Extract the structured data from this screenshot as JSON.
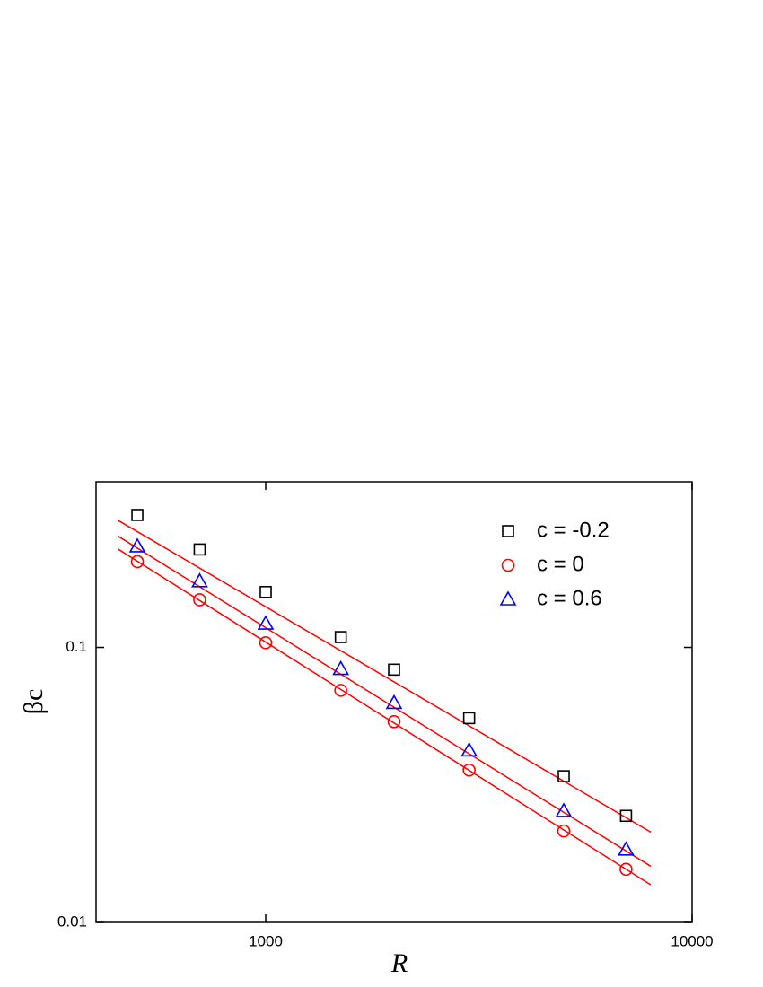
{
  "chart_data": {
    "type": "scatter",
    "x_label": "R",
    "y_label": "βc",
    "log_x": true,
    "log_y": true,
    "legend": "top-right",
    "xlim": [
      400,
      10000
    ],
    "ylim": [
      0.01,
      0.4
    ],
    "xticks": [
      1000,
      10000
    ],
    "yticks": [
      0.01,
      0.1
    ],
    "series": [
      {
        "name": "c = -0.2",
        "marker": "square",
        "color": "#000000",
        "x": [
          500,
          700,
          1000,
          1500,
          2000,
          3000,
          5000,
          7000
        ],
        "values": [
          0.303,
          0.227,
          0.159,
          0.109,
          0.083,
          0.0553,
          0.034,
          0.0244
        ],
        "fit_color": "#ff0000",
        "fit_x": [
          450,
          8000
        ],
        "fit_values": [
          0.29,
          0.0213
        ]
      },
      {
        "name": "c = 0",
        "marker": "circle",
        "color": "#ff0000",
        "x": [
          500,
          700,
          1000,
          1500,
          2000,
          3000,
          5000,
          7000
        ],
        "values": [
          0.205,
          0.149,
          0.104,
          0.0698,
          0.0537,
          0.0358,
          0.0215,
          0.0156
        ],
        "fit_color": "#ff0000",
        "fit_x": [
          450,
          8000
        ],
        "fit_values": [
          0.228,
          0.0137
        ]
      },
      {
        "name": "c = 0.6",
        "marker": "triangle",
        "color": "#0000ff",
        "x": [
          500,
          700,
          1000,
          1500,
          2000,
          3000,
          5000,
          7000
        ],
        "values": [
          0.233,
          0.174,
          0.122,
          0.0835,
          0.0628,
          0.0422,
          0.0254,
          0.0184
        ],
        "fit_color": "#ff0000",
        "fit_x": [
          450,
          8000
        ],
        "fit_values": [
          0.254,
          0.016
        ]
      }
    ]
  }
}
